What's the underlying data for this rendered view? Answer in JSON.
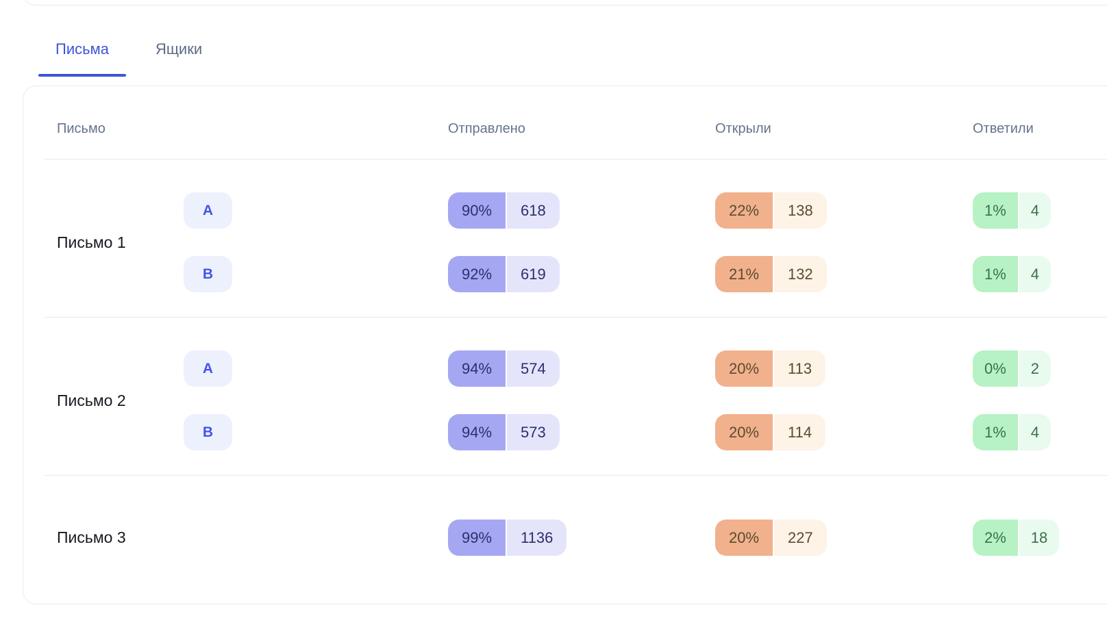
{
  "tabs": [
    {
      "label": "Письма",
      "active": true
    },
    {
      "label": "Ящики",
      "active": false
    }
  ],
  "table": {
    "columns": [
      "Письмо",
      "Отправлено",
      "Открыли",
      "Ответили"
    ],
    "rows": [
      {
        "name": "Письмо 1",
        "variants": [
          {
            "label": "A",
            "sent": {
              "pct": "90%",
              "count": "618"
            },
            "opened": {
              "pct": "22%",
              "count": "138"
            },
            "replied": {
              "pct": "1%",
              "count": "4"
            }
          },
          {
            "label": "B",
            "sent": {
              "pct": "92%",
              "count": "619"
            },
            "opened": {
              "pct": "21%",
              "count": "132"
            },
            "replied": {
              "pct": "1%",
              "count": "4"
            }
          }
        ]
      },
      {
        "name": "Письмо 2",
        "variants": [
          {
            "label": "A",
            "sent": {
              "pct": "94%",
              "count": "574"
            },
            "opened": {
              "pct": "20%",
              "count": "113"
            },
            "replied": {
              "pct": "0%",
              "count": "2"
            }
          },
          {
            "label": "B",
            "sent": {
              "pct": "94%",
              "count": "573"
            },
            "opened": {
              "pct": "20%",
              "count": "114"
            },
            "replied": {
              "pct": "1%",
              "count": "4"
            }
          }
        ]
      },
      {
        "name": "Письмо 3",
        "variants": [
          {
            "label": "",
            "sent": {
              "pct": "99%",
              "count": "1136"
            },
            "opened": {
              "pct": "20%",
              "count": "227"
            },
            "replied": {
              "pct": "2%",
              "count": "18"
            }
          }
        ]
      }
    ]
  },
  "colors": {
    "accent_blue": "#3c55d9",
    "sent_strong": "#a6a7f2",
    "sent_light": "#e4e5fb",
    "sent_text": "#2c2f6c",
    "opened_strong": "#f1b18c",
    "opened_light": "#fdf3e6",
    "opened_text": "#594b31",
    "replied_strong": "#b6f2c3",
    "replied_light": "#e9faee",
    "replied_text": "#3e6f49",
    "variant_badge_bg": "#edf1fd",
    "variant_badge_text": "#4355e8"
  }
}
